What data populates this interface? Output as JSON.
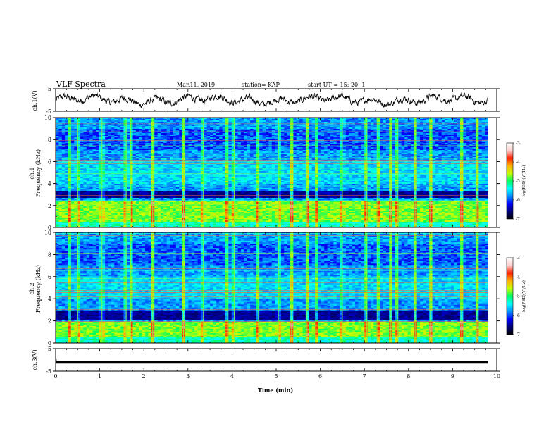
{
  "header": {
    "title": "VLF Spectra",
    "date": "Mar.11, 2019",
    "station": "station= KAP",
    "start": "start  UT =   15: 20: 1"
  },
  "panels": {
    "ch1_wave": {
      "ylabel": "ch.1(V)"
    },
    "ch1_spec": {
      "ylabel_line1": "ch.1",
      "ylabel_line2": "Frequency (kHz)"
    },
    "ch2_spec": {
      "ylabel_line1": "ch.2",
      "ylabel_line2": "Frequency (kHz)"
    },
    "ch3_wave": {
      "ylabel": "ch.3(V)"
    }
  },
  "colorbar": {
    "label": "log(PSD)(V²/Hz)",
    "ticks": [
      -3,
      -4,
      -5,
      -6,
      -7
    ],
    "stops": [
      "#000000",
      "#00007a",
      "#0000ff",
      "#0090ff",
      "#00ffff",
      "#00ff60",
      "#c8ff00",
      "#ffb000",
      "#ff2000",
      "#ffd0d0",
      "#ffffff"
    ]
  },
  "chart_data": [
    {
      "type": "line",
      "name": "ch.1 waveform",
      "ylabel": "ch.1(V)",
      "xlim": [
        0,
        10
      ],
      "ylim": [
        -5,
        5
      ],
      "yticks": [
        5,
        -5
      ],
      "x_extent": [
        0,
        9.8
      ],
      "approx_mean": 0,
      "approx_amplitude": 2.5
    },
    {
      "type": "heatmap",
      "name": "ch.1 spectrogram",
      "ylabel": "Frequency (kHz)",
      "xlim": [
        0,
        10
      ],
      "ylim": [
        0,
        10
      ],
      "yticks": [
        0,
        2,
        4,
        6,
        8,
        10
      ],
      "x_extent": [
        0,
        9.8
      ],
      "color_range": [
        -7,
        -3
      ],
      "dark_band_khz": [
        2.7,
        3.3
      ],
      "strong_band_khz": [
        0.5,
        2.4
      ],
      "impulse_times_min": [
        0.33,
        0.5,
        1.05,
        1.6,
        1.7,
        2.2,
        2.9,
        3.35,
        3.9,
        4.05,
        4.6,
        5.05,
        5.35,
        5.7,
        5.9,
        6.5,
        7.05,
        7.3,
        7.6,
        7.75,
        8.15,
        8.5,
        9.2,
        9.55
      ]
    },
    {
      "type": "heatmap",
      "name": "ch.2 spectrogram",
      "ylabel": "Frequency (kHz)",
      "xlim": [
        0,
        10
      ],
      "ylim": [
        0,
        10
      ],
      "yticks": [
        0,
        2,
        4,
        6,
        8,
        10
      ],
      "x_extent": [
        0,
        9.8
      ],
      "color_range": [
        -7,
        -3
      ],
      "dark_band_khz": [
        2.1,
        2.9
      ],
      "strong_band_khz": [
        0.5,
        1.9
      ],
      "impulse_times_min": [
        0.33,
        0.5,
        1.05,
        1.6,
        1.7,
        2.2,
        2.9,
        3.35,
        3.9,
        4.05,
        4.6,
        5.05,
        5.35,
        5.7,
        5.9,
        6.5,
        7.05,
        7.3,
        7.6,
        7.75,
        8.15,
        8.5,
        9.2,
        9.55
      ]
    },
    {
      "type": "line",
      "name": "ch.3 waveform",
      "ylabel": "ch.3(V)",
      "xlim": [
        0,
        10
      ],
      "ylim": [
        -5,
        5
      ],
      "yticks": [
        5,
        -5
      ],
      "x_extent": [
        0,
        9.8
      ],
      "constant_value": -1
    }
  ],
  "xaxis": {
    "label": "Time (min)",
    "ticks": [
      0,
      1,
      2,
      3,
      4,
      5,
      6,
      7,
      8,
      9,
      10
    ]
  }
}
